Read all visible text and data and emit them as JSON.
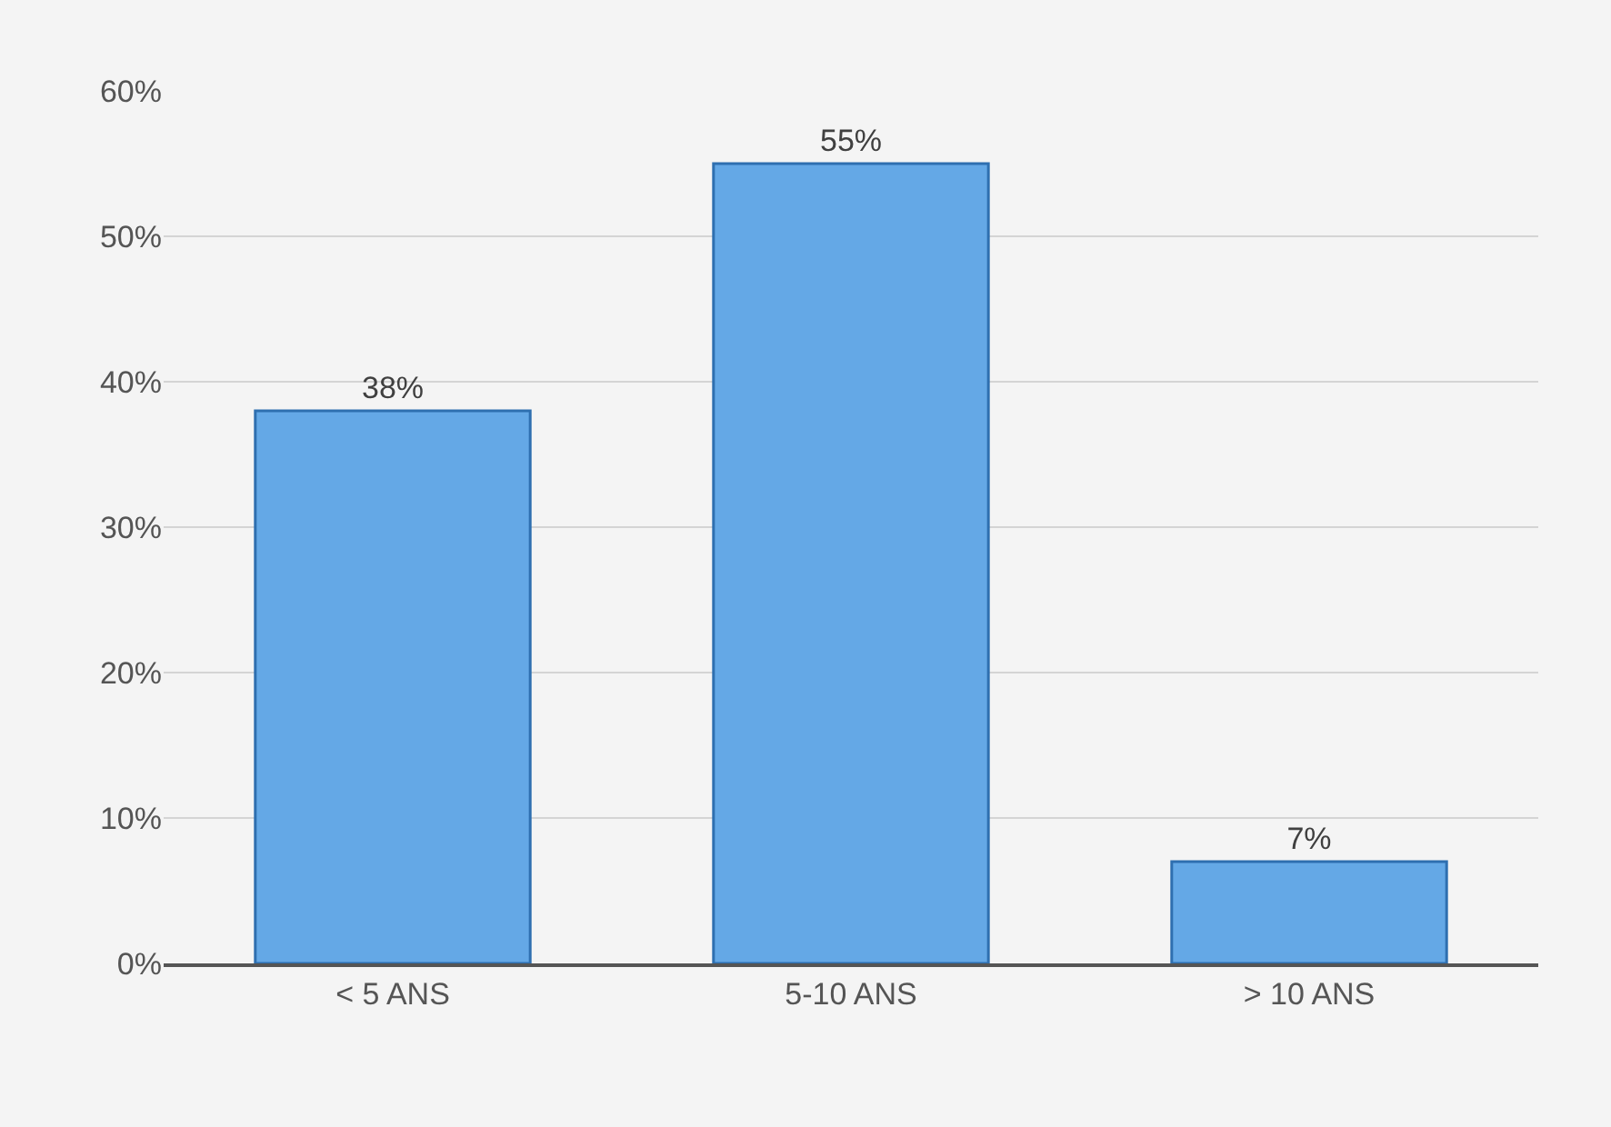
{
  "chart_data": {
    "type": "bar",
    "categories": [
      "< 5 ANS",
      "5-10 ANS",
      "> 10 ANS"
    ],
    "values": [
      38,
      55,
      7
    ],
    "value_labels": [
      "38%",
      "55%",
      "7%"
    ],
    "color": "#64a8e6",
    "ylim": [
      0,
      60
    ],
    "yticks": [
      {
        "value": 0,
        "label": "0%"
      },
      {
        "value": 10,
        "label": "10%"
      },
      {
        "value": 20,
        "label": "20%"
      },
      {
        "value": 30,
        "label": "30%"
      },
      {
        "value": 40,
        "label": "40%"
      },
      {
        "value": 50,
        "label": "50%"
      },
      {
        "value": 60,
        "label": "60%"
      }
    ],
    "grid": "y"
  }
}
